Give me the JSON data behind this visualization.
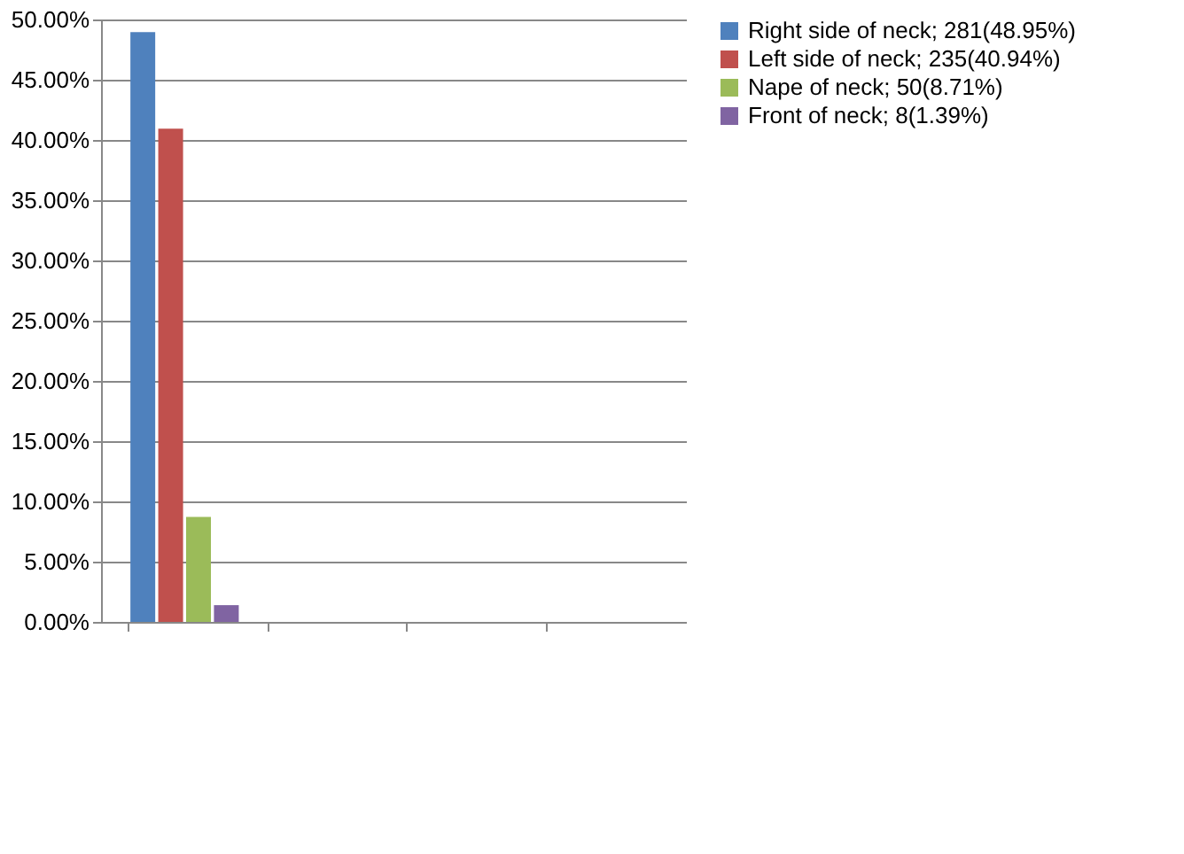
{
  "chart_data": {
    "type": "bar",
    "categories": [
      null,
      null,
      null,
      null
    ],
    "series": [
      {
        "name": "Right side of neck; 281(48.95%)",
        "color": "#4f81bd",
        "values": [
          48.95,
          null,
          null,
          null
        ]
      },
      {
        "name": "Left side of neck; 235(40.94%)",
        "color": "#c0504d",
        "values": [
          40.94,
          null,
          null,
          null
        ]
      },
      {
        "name": "Nape of neck; 50(8.71%)",
        "color": "#9bbb59",
        "values": [
          8.71,
          null,
          null,
          null
        ]
      },
      {
        "name": "Front of neck; 8(1.39%)",
        "color": "#8064a2",
        "values": [
          1.39,
          null,
          null,
          null
        ]
      }
    ],
    "ylim": [
      0,
      50
    ],
    "yticks": [
      {
        "value": 0,
        "label": "0.00%"
      },
      {
        "value": 5,
        "label": "5.00%"
      },
      {
        "value": 10,
        "label": "10.00%"
      },
      {
        "value": 15,
        "label": "15.00%"
      },
      {
        "value": 20,
        "label": "20.00%"
      },
      {
        "value": 25,
        "label": "25.00%"
      },
      {
        "value": 30,
        "label": "30.00%"
      },
      {
        "value": 35,
        "label": "35.00%"
      },
      {
        "value": 40,
        "label": "40.00%"
      },
      {
        "value": 45,
        "label": "45.00%"
      },
      {
        "value": 50,
        "label": "50.00%"
      }
    ],
    "grid": "y",
    "legend": "right"
  }
}
